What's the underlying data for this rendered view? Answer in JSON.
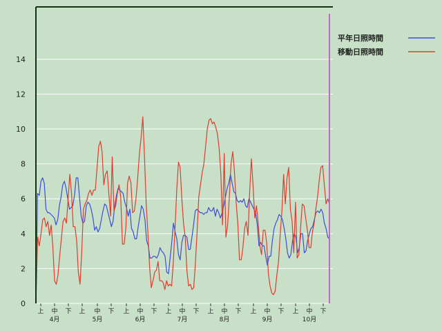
{
  "chart_data": {
    "type": "line",
    "title": "",
    "xlabel": "",
    "ylabel": "",
    "ylim": [
      0,
      17
    ],
    "yticks": [
      0,
      2,
      4,
      6,
      8,
      10,
      12,
      14
    ],
    "grid": true,
    "legend_position": "top-right",
    "period_ticks": [
      "上",
      "中",
      "下",
      "上",
      "中",
      "下",
      "上",
      "中",
      "下",
      "上",
      "中",
      "下",
      "上",
      "中",
      "下",
      "上",
      "中",
      "下",
      "上",
      "中",
      "下"
    ],
    "months": [
      "4月",
      "5月",
      "6月",
      "7月",
      "8月",
      "9月",
      "10月"
    ],
    "x_start": "04-01",
    "x_end": "10-31",
    "series": [
      {
        "name": "平年日照時間",
        "color": "#3b4fd6",
        "values": [
          0.0,
          6.3,
          6.2,
          7.0,
          7.2,
          6.9,
          5.4,
          5.2,
          5.2,
          5.1,
          5.0,
          4.9,
          4.5,
          4.8,
          5.6,
          6.1,
          6.8,
          7.0,
          6.6,
          6.0,
          5.4,
          5.5,
          5.6,
          6.2,
          7.2,
          7.2,
          6.1,
          5.0,
          4.6,
          4.7,
          5.6,
          5.8,
          5.7,
          5.4,
          4.9,
          4.2,
          4.4,
          4.1,
          4.3,
          4.8,
          5.3,
          5.7,
          5.6,
          5.2,
          4.8,
          4.4,
          4.7,
          5.6,
          6.2,
          6.6,
          6.5,
          6.4,
          6.3,
          5.8,
          5.5,
          5.0,
          5.4,
          4.3,
          4.1,
          3.7,
          3.7,
          4.4,
          5.0,
          5.6,
          5.4,
          4.8,
          3.6,
          3.3,
          2.6,
          2.6,
          2.7,
          2.7,
          2.6,
          2.8,
          3.2,
          3.0,
          2.9,
          2.7,
          1.8,
          1.7,
          2.6,
          3.5,
          4.6,
          4.1,
          3.7,
          2.8,
          2.5,
          3.5,
          3.9,
          3.9,
          3.8,
          3.1,
          3.1,
          3.8,
          4.5,
          5.3,
          5.4,
          5.3,
          5.2,
          5.2,
          5.1,
          5.2,
          5.2,
          5.5,
          5.3,
          5.3,
          5.5,
          5.0,
          5.4,
          5.2,
          4.9,
          5.2,
          5.6,
          6.1,
          6.6,
          6.9,
          7.4,
          6.9,
          6.4,
          6.3,
          5.9,
          5.8,
          5.9,
          5.8,
          6.0,
          5.6,
          5.5,
          6.0,
          5.8,
          5.6,
          5.4,
          5.2,
          4.5,
          3.3,
          3.5,
          3.3,
          3.3,
          2.7,
          2.2,
          2.7,
          2.7,
          3.6,
          4.3,
          4.6,
          4.8,
          5.1,
          5.0,
          4.8,
          4.3,
          3.7,
          2.9,
          2.6,
          2.8,
          3.6,
          4.0,
          3.8,
          2.9,
          3.2,
          4.0,
          4.0,
          2.9,
          3.0,
          3.6,
          4.0,
          4.3,
          4.4,
          4.8,
          5.2,
          5.3,
          5.2,
          5.4,
          5.2,
          4.6,
          4.3,
          3.8,
          3.7
        ]
      },
      {
        "name": "移動日照時間",
        "color": "#e03c2c",
        "values": [
          0.0,
          3.8,
          3.3,
          4.0,
          4.8,
          4.9,
          4.4,
          4.7,
          3.9,
          4.5,
          3.2,
          1.3,
          1.1,
          1.6,
          2.7,
          3.7,
          4.7,
          4.9,
          4.6,
          6.0,
          7.4,
          6.3,
          4.4,
          4.4,
          3.6,
          1.8,
          1.1,
          2.9,
          5.4,
          5.7,
          5.9,
          6.3,
          6.5,
          6.2,
          6.5,
          6.5,
          7.7,
          9.0,
          9.3,
          8.7,
          6.8,
          7.4,
          7.6,
          6.3,
          5.0,
          8.4,
          5.3,
          5.6,
          6.3,
          6.8,
          6.1,
          3.4,
          3.4,
          4.3,
          6.9,
          7.3,
          6.9,
          5.2,
          5.3,
          6.0,
          7.2,
          8.6,
          9.5,
          10.7,
          8.4,
          5.7,
          4.1,
          2.1,
          0.9,
          1.3,
          1.8,
          1.9,
          2.4,
          1.3,
          1.3,
          1.2,
          0.8,
          1.3,
          1.0,
          1.1,
          1.0,
          2.4,
          4.3,
          6.5,
          8.1,
          7.8,
          6.0,
          4.6,
          3.8,
          1.9,
          1.0,
          1.1,
          0.8,
          0.9,
          2.3,
          4.1,
          6.1,
          6.8,
          7.5,
          8.0,
          9.0,
          10.0,
          10.5,
          10.6,
          10.3,
          10.4,
          10.1,
          9.7,
          8.9,
          7.4,
          4.5,
          8.6,
          3.8,
          4.5,
          6.1,
          8.0,
          8.7,
          7.6,
          5.8,
          4.6,
          2.5,
          2.5,
          3.2,
          4.3,
          4.7,
          3.9,
          6.4,
          8.3,
          6.7,
          4.9,
          5.6,
          4.6,
          3.3,
          2.8,
          4.2,
          4.2,
          3.5,
          1.7,
          1.0,
          0.6,
          0.5,
          0.7,
          1.6,
          2.4,
          4.0,
          5.3,
          7.4,
          5.7,
          7.2,
          7.8,
          5.4,
          4.7,
          2.9,
          5.8,
          2.6,
          2.8,
          4.3,
          5.7,
          5.6,
          4.9,
          4.2,
          3.2,
          3.2,
          4.1,
          4.6,
          5.4,
          6.1,
          7.1,
          7.8,
          7.9,
          6.8,
          5.7,
          6.0,
          5.7
        ]
      }
    ]
  }
}
